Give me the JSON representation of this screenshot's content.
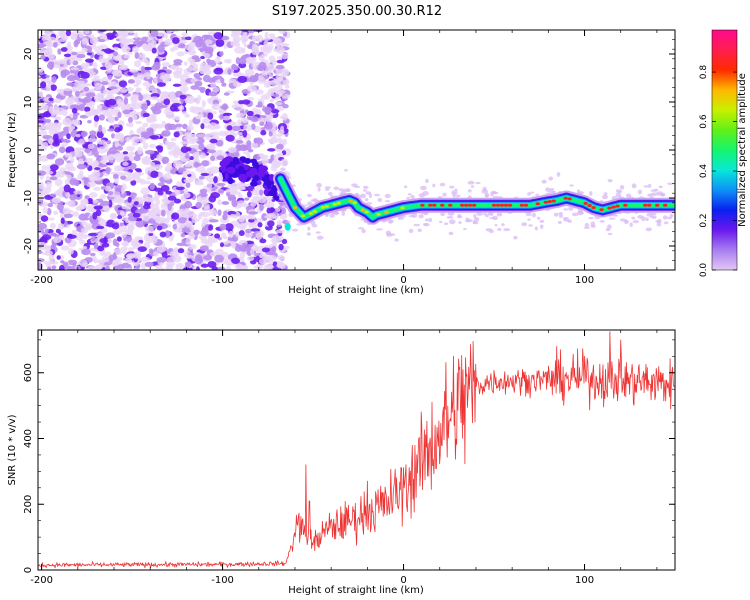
{
  "chart_data": [
    {
      "type": "heatmap",
      "title": "S197.2025.350.00.30.R12",
      "xlabel": "Height of straight line (km)",
      "ylabel": "Frequency (Hz)",
      "xlim": [
        -202,
        150
      ],
      "ylim": [
        -25,
        25
      ],
      "xticks": [
        -200,
        -100,
        0,
        100
      ],
      "yticks": [
        -20,
        -10,
        0,
        10,
        20
      ],
      "colorbar": {
        "label": "Normalized spectral amplitude",
        "range": [
          0,
          0.97
        ],
        "ticks": [
          0.0,
          0.2,
          0.4,
          0.6,
          0.8
        ],
        "colors": [
          "#e4c7f4",
          "#a77ef0",
          "#6a18ee",
          "#0a20f0",
          "#0e92f7",
          "#07e8d8",
          "#15f56d",
          "#62f017",
          "#c8f000",
          "#ffb800",
          "#ff2a00",
          "#ff1e4e",
          "#ff0a8c"
        ]
      },
      "noise_region_x": [
        -202,
        -68
      ],
      "ridge_line": {
        "x": [
          -68,
          -60,
          -55,
          -50,
          -45,
          -40,
          -35,
          -30,
          -27,
          -25,
          -20,
          -17,
          -15,
          -10,
          -5,
          0,
          10,
          20,
          30,
          40,
          50,
          60,
          70,
          80,
          85,
          90,
          95,
          100,
          105,
          110,
          120,
          130,
          140,
          150
        ],
        "y": [
          -6,
          -12,
          -14,
          -13,
          -12,
          -11.5,
          -11,
          -10.5,
          -11,
          -12,
          -13,
          -14,
          -13.5,
          -13,
          -12.5,
          -12,
          -11.5,
          -11.5,
          -11.5,
          -11.5,
          -11.5,
          -11.5,
          -11.5,
          -10.8,
          -10.5,
          -10,
          -10.5,
          -11,
          -12,
          -12.5,
          -11.5,
          -11.5,
          -11.5,
          -11.5
        ]
      },
      "diagonal_feature": {
        "x": [
          -100,
          -90,
          -80,
          -75,
          -70
        ],
        "y": [
          -4,
          -4,
          -5,
          -7,
          -9
        ]
      }
    },
    {
      "type": "line",
      "xlabel": "Height of straight line (km)",
      "ylabel": "SNR (10 * v/v)",
      "xlim": [
        -202,
        150
      ],
      "ylim": [
        0,
        730
      ],
      "xticks": [
        -200,
        -100,
        0,
        100
      ],
      "yticks": [
        0,
        200,
        400,
        600
      ],
      "series": [
        {
          "name": "SNR",
          "color": "#ee3333",
          "trend": {
            "x": [
              -202,
              -100,
              -65,
              -58,
              -55,
              -50,
              -45,
              -40,
              -30,
              -20,
              -10,
              0,
              10,
              20,
              30,
              40,
              50,
              60,
              80,
              100,
              120,
              140,
              150
            ],
            "y": [
              15,
              17,
              20,
              150,
              110,
              80,
              110,
              130,
              150,
              175,
              200,
              250,
              330,
              420,
              500,
              560,
              575,
              575,
              580,
              585,
              575,
              570,
              565
            ]
          },
          "spikes": [
            {
              "x": -54,
              "y": 320
            },
            {
              "x": -52,
              "y": 210
            },
            {
              "x": -20,
              "y": 270
            },
            {
              "x": 100,
              "y": 650
            },
            {
              "x": 114,
              "y": 725
            },
            {
              "x": 120,
              "y": 700
            }
          ]
        }
      ]
    }
  ]
}
